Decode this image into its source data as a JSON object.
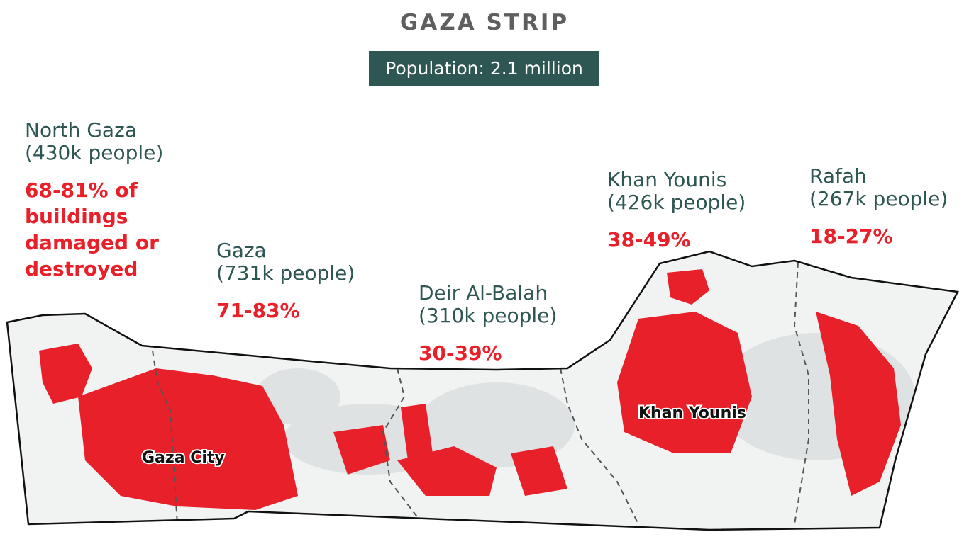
{
  "header": {
    "title": "GAZA STRIP",
    "population": "Population: 2.1 million"
  },
  "regions": [
    {
      "name": "North Gaza",
      "people": "(430k people)",
      "damage": "68-81% of buildings damaged or destroyed"
    },
    {
      "name": "Gaza",
      "people": "(731k people)",
      "damage": "71-83%"
    },
    {
      "name": "Deir Al-Balah",
      "people": "(310k people)",
      "damage": "30-39%"
    },
    {
      "name": "Khan Younis",
      "people": "(426k people)",
      "damage": "38-49%"
    },
    {
      "name": "Rafah",
      "people": "(267k people)",
      "damage": "18-27%"
    }
  ],
  "cities": [
    "Gaza City",
    "Khan Younis"
  ]
}
